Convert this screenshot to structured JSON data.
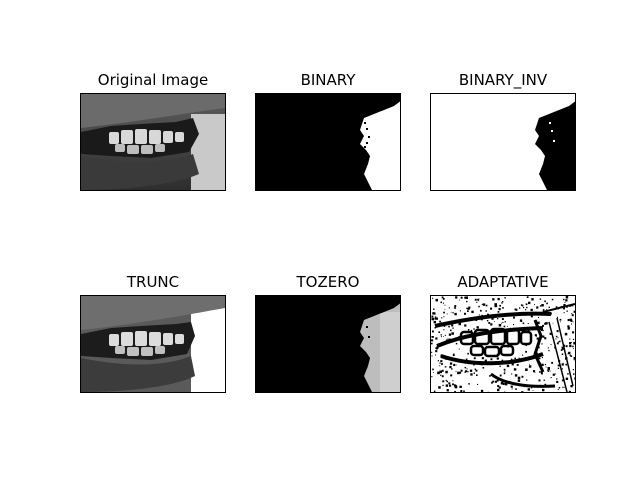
{
  "figure": {
    "panels": [
      {
        "title": "Original Image",
        "threshold_type": "original"
      },
      {
        "title": "BINARY",
        "threshold_type": "binary"
      },
      {
        "title": "BINARY_INV",
        "threshold_type": "binary_inv"
      },
      {
        "title": "TRUNC",
        "threshold_type": "trunc"
      },
      {
        "title": "TOZERO",
        "threshold_type": "tozero"
      },
      {
        "title": "ADAPTATIVE",
        "threshold_type": "adaptive"
      }
    ]
  },
  "colors": {
    "background": "#ffffff",
    "frame": "#000000",
    "dark": "#000000",
    "light": "#ffffff"
  }
}
